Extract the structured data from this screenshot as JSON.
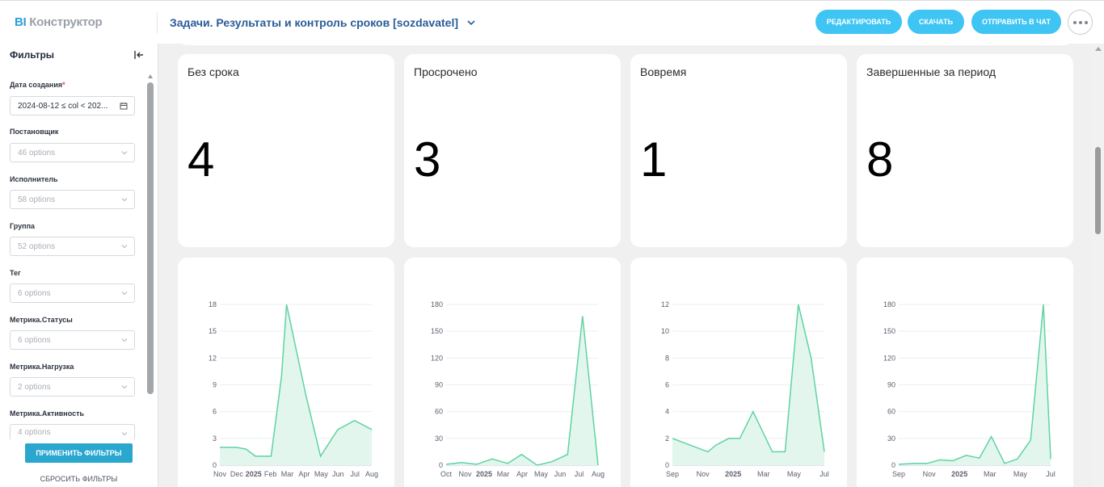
{
  "app": {
    "logo_bi": "BI",
    "logo_rest": " Конструктор"
  },
  "header": {
    "title": "Задачи. Результаты и контроль сроков [sozdavatel]",
    "edit_label": "РЕДАКТИРОВАТЬ",
    "download_label": "СКАЧАТЬ",
    "send_label": "ОТПРАВИТЬ В ЧАТ"
  },
  "sidebar": {
    "title": "Фильтры",
    "filters": [
      {
        "label": "Дата создания",
        "required": "*",
        "value": "2024-08-12 ≤ col < 202..."
      },
      {
        "label": "Постановщик",
        "value": "46 options"
      },
      {
        "label": "Исполнитель",
        "value": "58 options"
      },
      {
        "label": "Группа",
        "value": "52 options"
      },
      {
        "label": "Тег",
        "value": "6 options"
      },
      {
        "label": "Метрика.Статусы",
        "value": "6 options"
      },
      {
        "label": "Метрика.Нагрузка",
        "value": "2 options"
      },
      {
        "label": "Метрика.Активность",
        "value": "4 options"
      }
    ],
    "apply_label": "ПРИМЕНИТЬ ФИЛЬТРЫ",
    "reset_label": "СБРОСИТЬ ФИЛЬТРЫ"
  },
  "kpis": [
    {
      "title": "Без срока",
      "value": "4"
    },
    {
      "title": "Просрочено",
      "value": "3"
    },
    {
      "title": "Вовремя",
      "value": "1"
    },
    {
      "title": "Завершенные за период",
      "value": "8"
    }
  ],
  "colors": {
    "accent": "#3ec5f3",
    "line": "#5fd3a3",
    "fill": "#e2f6ee",
    "title": "#2a5c98"
  },
  "chart_data": [
    {
      "type": "area",
      "yticks": [
        0,
        3,
        6,
        9,
        12,
        15,
        18
      ],
      "ylim": [
        0,
        18
      ],
      "xticks": [
        "Nov",
        "Dec",
        "2025",
        "Feb",
        "Mar",
        "Apr",
        "May",
        "Jun",
        "Jul",
        "Aug"
      ],
      "x": [
        "2024-11-01",
        "2024-12-01",
        "2024-12-18",
        "2025-01-04",
        "2025-02-01",
        "2025-02-20",
        "2025-03-01",
        "2025-04-04",
        "2025-05-01",
        "2025-06-01",
        "2025-07-01",
        "2025-08-01"
      ],
      "values": [
        2,
        2,
        1.8,
        1,
        1,
        10,
        18,
        8,
        1,
        4,
        5,
        4
      ]
    },
    {
      "type": "area",
      "yticks": [
        0,
        30,
        60,
        90,
        120,
        150,
        180
      ],
      "ylim": [
        0,
        180
      ],
      "xticks": [
        "Oct",
        "Nov",
        "2025",
        "Mar",
        "Apr",
        "May",
        "Jun",
        "Jul",
        "Aug"
      ],
      "x": [
        "2024-10-01",
        "2024-11-01",
        "2024-12-01",
        "2025-01-01",
        "2025-02-01",
        "2025-03-01",
        "2025-04-01",
        "2025-05-01",
        "2025-06-01",
        "2025-07-01",
        "2025-08-01"
      ],
      "values": [
        1,
        3,
        1,
        7,
        2,
        12,
        0,
        4,
        12,
        167,
        0
      ]
    },
    {
      "type": "area",
      "yticks": [
        0,
        2,
        4,
        6,
        8,
        10,
        12
      ],
      "ylim": [
        0,
        12
      ],
      "xticks": [
        "Sep",
        "Nov",
        "2025",
        "Mar",
        "May",
        "Jul"
      ],
      "x": [
        "2024-08-10",
        "2024-11-01",
        "2024-11-20",
        "2024-12-20",
        "2025-01-15",
        "2025-02-15",
        "2025-04-01",
        "2025-05-01",
        "2025-06-01",
        "2025-07-01",
        "2025-08-01"
      ],
      "values": [
        2,
        1,
        1.5,
        2,
        2,
        4,
        1,
        1,
        12,
        8,
        1
      ]
    },
    {
      "type": "area",
      "yticks": [
        0,
        30,
        60,
        90,
        120,
        150,
        180
      ],
      "ylim": [
        0,
        180
      ],
      "xticks": [
        "Sep",
        "Nov",
        "2025",
        "Mar",
        "May",
        "Jul"
      ],
      "x": [
        "2024-08-10",
        "2024-09-15",
        "2024-10-15",
        "2024-11-15",
        "2024-12-15",
        "2025-01-15",
        "2025-02-15",
        "2025-03-15",
        "2025-04-15",
        "2025-05-15",
        "2025-06-15",
        "2025-07-15",
        "2025-08-01"
      ],
      "values": [
        1,
        2,
        2,
        6,
        5,
        11,
        8,
        32,
        2,
        7,
        28,
        180,
        7
      ]
    }
  ]
}
